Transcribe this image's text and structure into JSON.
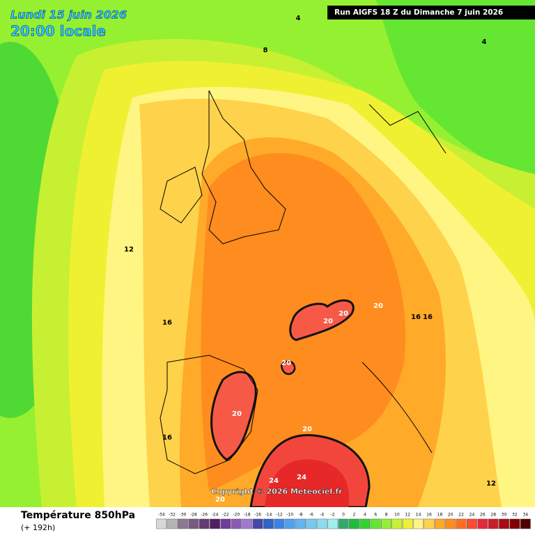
{
  "header": {
    "date": "Lundi 15 juin 2026",
    "time": "20:00 locale",
    "run": "Run AIGFS 18 Z du Dimanche 7 juin 2026"
  },
  "map": {
    "contour_labels": [
      "4",
      "8",
      "4",
      "12",
      "16",
      "16",
      "20",
      "16",
      "16",
      "20",
      "20",
      "20",
      "20",
      "20",
      "24",
      "24",
      "20",
      "12"
    ],
    "copyright": "Copyright © 2026 Meteociel.fr"
  },
  "footer": {
    "title": "Température 850hPa",
    "subtitle": "(+ 192h)"
  },
  "legend": {
    "ticks": [
      -34,
      -32,
      -30,
      -28,
      -26,
      -24,
      -22,
      -20,
      -18,
      -16,
      -14,
      -12,
      -10,
      -8,
      -6,
      -4,
      -2,
      0,
      2,
      4,
      6,
      8,
      10,
      12,
      14,
      16,
      18,
      20,
      22,
      24,
      26,
      28,
      30,
      32,
      34
    ],
    "colors": [
      "#d8d8d8",
      "#b4b4b4",
      "#8c7890",
      "#785a82",
      "#643c74",
      "#501e64",
      "#6e3c9a",
      "#8c5ab4",
      "#a078d2",
      "#4646aa",
      "#3264c8",
      "#3c82e6",
      "#50a0f0",
      "#64b4f0",
      "#78c8f0",
      "#8cdcf0",
      "#a0f0f0",
      "#30aa6e",
      "#1ebe3c",
      "#32d232",
      "#64e632",
      "#96f032",
      "#c8f032",
      "#f0f032",
      "#fff582",
      "#ffd24b",
      "#ffaa28",
      "#ff8c1e",
      "#ff6e1e",
      "#ff4b32",
      "#e6283c",
      "#c81e28",
      "#aa0a14",
      "#820000",
      "#500000"
    ]
  }
}
